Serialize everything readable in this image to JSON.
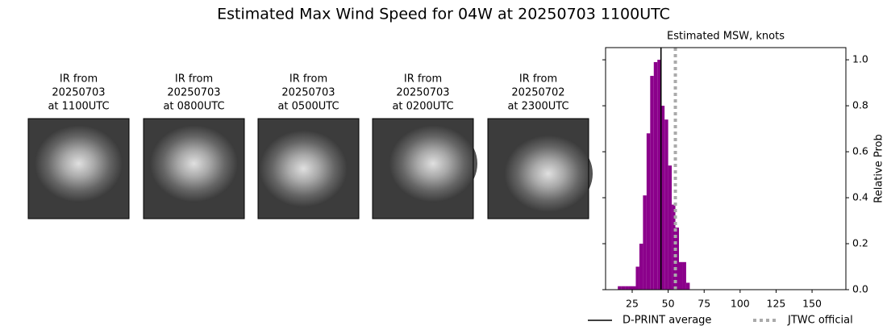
{
  "title": "Estimated Max Wind Speed for 04W at 20250703 1100UTC",
  "panels": [
    {
      "lines": [
        "IR from",
        "20250703",
        "at 1100UTC"
      ]
    },
    {
      "lines": [
        "IR from",
        "20250703",
        "at 0800UTC"
      ]
    },
    {
      "lines": [
        "IR from",
        "20250703",
        "at 0500UTC"
      ]
    },
    {
      "lines": [
        "IR from",
        "20250703",
        "at 0200UTC"
      ]
    },
    {
      "lines": [
        "IR from",
        "20250702",
        "at 2300UTC"
      ]
    }
  ],
  "chart_data": {
    "type": "histogram",
    "title": "Estimated MSW, knots",
    "ylabel": "Relative Prob",
    "bins": [
      15,
      17.5,
      20,
      22.5,
      25,
      27.5,
      30,
      32.5,
      35,
      37.5,
      40,
      42.5,
      45,
      47.5,
      50,
      52.5,
      55,
      57.5,
      60,
      62.5,
      65
    ],
    "values": [
      0.015,
      0.015,
      0.015,
      0.015,
      0.015,
      0.1,
      0.2,
      0.41,
      0.68,
      0.93,
      0.99,
      1.0,
      0.8,
      0.74,
      0.54,
      0.37,
      0.27,
      0.12,
      0.12,
      0.03
    ],
    "color": "#8b008b",
    "xlim": [
      6.5,
      173.5
    ],
    "xticks": [
      25,
      50,
      75,
      100,
      125,
      150
    ],
    "ylim": [
      0,
      1.053
    ],
    "yticks": [
      {
        "value": 0,
        "label": "0.0"
      },
      0.2,
      0.4,
      0.6,
      0.8,
      {
        "value": 1,
        "label": "1.0"
      }
    ],
    "reference_lines": [
      {
        "name": "D-PRINT average",
        "value": 45,
        "color": "#000000",
        "style": "solid"
      },
      {
        "name": "JTWC official",
        "value": 55,
        "color": "#aaaaaa",
        "style": "dotted"
      }
    ]
  }
}
